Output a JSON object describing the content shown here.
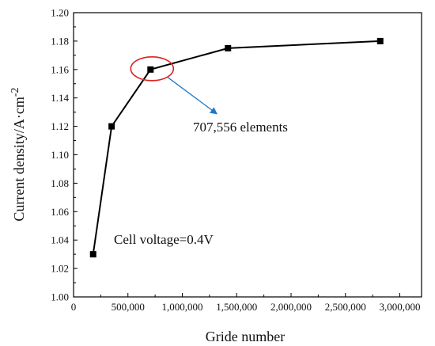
{
  "chart_data": {
    "type": "line",
    "x": [
      180000,
      350000,
      707556,
      1420000,
      2820000
    ],
    "y": [
      1.03,
      1.12,
      1.16,
      1.175,
      1.18
    ],
    "xlabel": "Gride number",
    "ylabel": "Current density/A·cm",
    "ylabel_superscript": "-2",
    "xlim": [
      0,
      3200000
    ],
    "ylim": [
      1.0,
      1.2
    ],
    "x_ticks": [
      0,
      500000,
      1000000,
      1500000,
      2000000,
      2500000,
      3000000
    ],
    "x_tick_labels": [
      "0",
      "500,000",
      "1,000,000",
      "1,500,000",
      "2,000,000",
      "2,500,000",
      "3,000,000"
    ],
    "y_ticks": [
      1.0,
      1.02,
      1.04,
      1.06,
      1.08,
      1.1,
      1.12,
      1.14,
      1.16,
      1.18,
      1.2
    ],
    "y_tick_labels": [
      "1.00",
      "1.02",
      "1.04",
      "1.06",
      "1.08",
      "1.10",
      "1.12",
      "1.14",
      "1.16",
      "1.18",
      "1.20"
    ],
    "grid": false,
    "marker": "square",
    "line_color": "#000000",
    "highlight": {
      "point_index": 2,
      "label": "707,556 elements",
      "ellipse_color": "#e02020",
      "arrow_color": "#1f78c8"
    },
    "annotation": "Cell voltage=0.4V"
  }
}
